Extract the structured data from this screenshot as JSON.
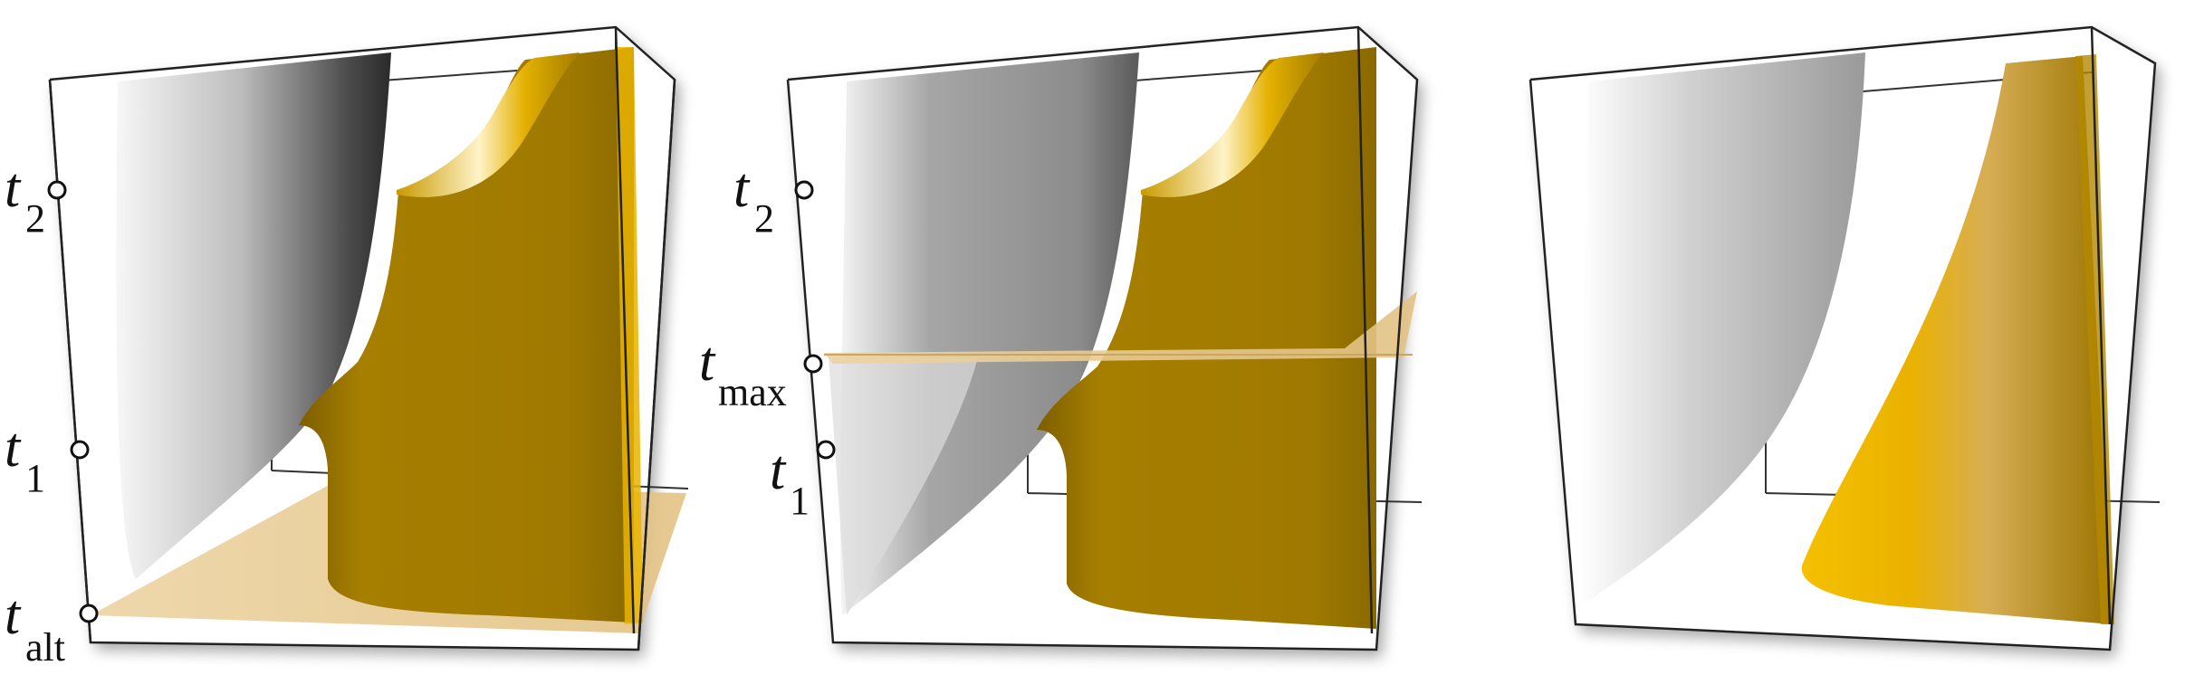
{
  "figure": {
    "panels": [
      {
        "id": "left",
        "markers": [
          {
            "base": "t",
            "sub": "2"
          },
          {
            "base": "t",
            "sub": "1"
          },
          {
            "base": "t",
            "sub": "alt"
          }
        ],
        "plane": "bottom"
      },
      {
        "id": "middle",
        "markers": [
          {
            "base": "t",
            "sub": "2"
          },
          {
            "base": "t",
            "sub": "max"
          },
          {
            "base": "t",
            "sub": "1"
          }
        ],
        "plane": "middle"
      },
      {
        "id": "right",
        "markers": [],
        "plane": "none"
      }
    ],
    "colors": {
      "gray_surface_light": "#f2f2f2",
      "gray_surface_dark": "#777777",
      "gold_surface": "#a87f00",
      "gold_highlight": "#f5c000",
      "plane_fill": "#e8c98a",
      "box_stroke": "#222222"
    }
  }
}
